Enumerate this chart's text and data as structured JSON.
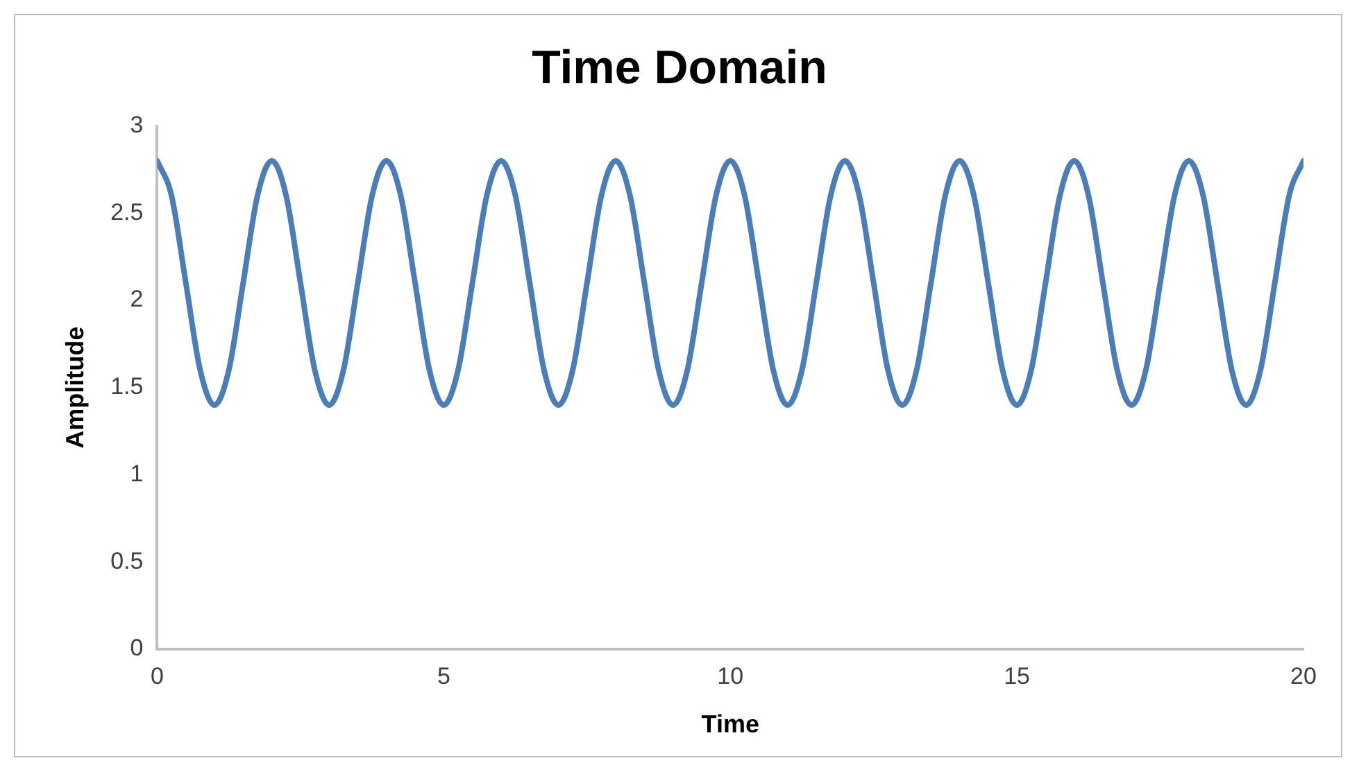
{
  "chart_data": {
    "type": "line",
    "title": "Time Domain",
    "xlabel": "Time",
    "ylabel": "Amplitude",
    "x": [
      0,
      0.25,
      0.5,
      0.75,
      1,
      1.25,
      1.5,
      1.75,
      2,
      2.25,
      2.5,
      2.75,
      3,
      3.25,
      3.5,
      3.75,
      4,
      4.25,
      4.5,
      4.75,
      5,
      5.25,
      5.5,
      5.75,
      6,
      6.25,
      6.5,
      6.75,
      7,
      7.25,
      7.5,
      7.75,
      8,
      8.25,
      8.5,
      8.75,
      9,
      9.25,
      9.5,
      9.75,
      10,
      10.25,
      10.5,
      10.75,
      11,
      11.25,
      11.5,
      11.75,
      12,
      12.25,
      12.5,
      12.75,
      13,
      13.25,
      13.5,
      13.75,
      14,
      14.25,
      14.5,
      14.75,
      15,
      15.25,
      15.5,
      15.75,
      16,
      16.25,
      16.5,
      16.75,
      17,
      17.25,
      17.5,
      17.75,
      18,
      18.25,
      18.5,
      18.75,
      19,
      19.25,
      19.5,
      19.75,
      20
    ],
    "series": [
      {
        "color": "#4a7ebb",
        "values": [
          2.8,
          2.6,
          2.1,
          1.6,
          1.4,
          1.6,
          2.1,
          2.6,
          2.8,
          2.6,
          2.1,
          1.6,
          1.4,
          1.6,
          2.1,
          2.6,
          2.8,
          2.6,
          2.1,
          1.6,
          1.4,
          1.6,
          2.1,
          2.6,
          2.8,
          2.6,
          2.1,
          1.6,
          1.4,
          1.6,
          2.1,
          2.6,
          2.8,
          2.6,
          2.1,
          1.6,
          1.4,
          1.6,
          2.1,
          2.6,
          2.8,
          2.6,
          2.1,
          1.6,
          1.4,
          1.6,
          2.1,
          2.6,
          2.8,
          2.6,
          2.1,
          1.6,
          1.4,
          1.6,
          2.1,
          2.6,
          2.8,
          2.6,
          2.1,
          1.6,
          1.4,
          1.6,
          2.1,
          2.6,
          2.8,
          2.6,
          2.1,
          1.6,
          1.4,
          1.6,
          2.1,
          2.6,
          2.8,
          2.6,
          2.1,
          1.6,
          1.4,
          1.6,
          2.1,
          2.6,
          2.8
        ]
      }
    ],
    "xlim": [
      0,
      20
    ],
    "xticks": [
      0,
      5,
      10,
      15,
      20
    ],
    "ylim": [
      0,
      3
    ],
    "yticks": [
      0,
      0.5,
      1,
      1.5,
      2,
      2.5,
      3
    ],
    "grid": false,
    "legend": false,
    "marker": "none",
    "line_style": "solid"
  }
}
